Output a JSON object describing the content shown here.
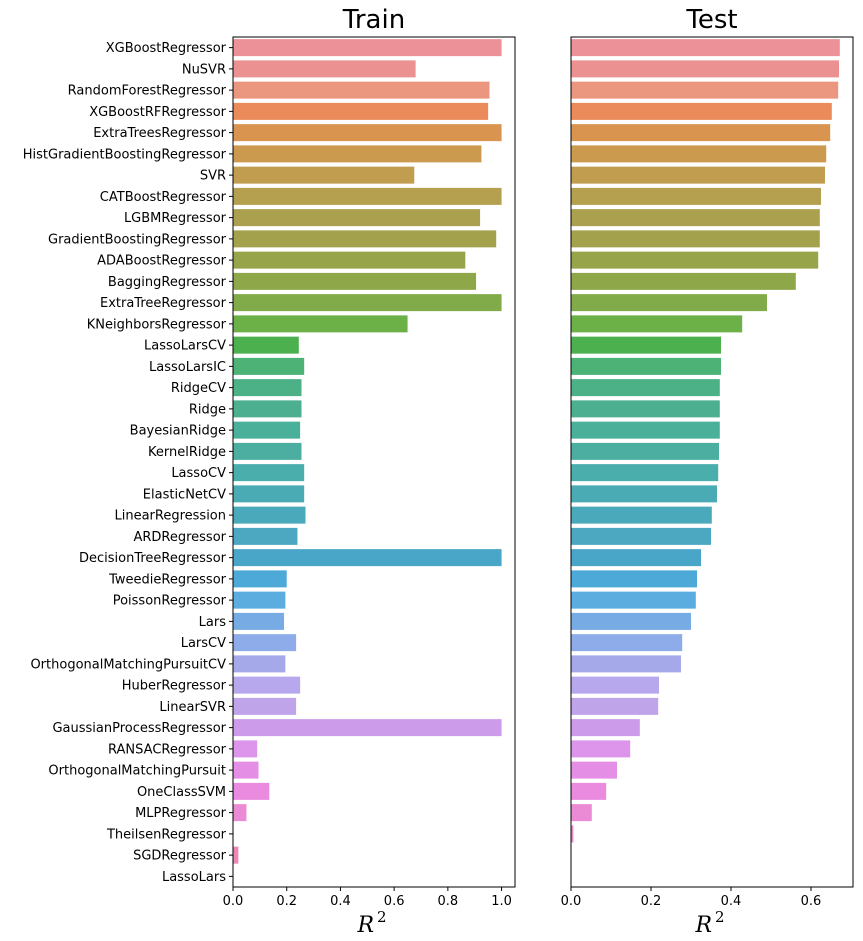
{
  "chart_data": [
    {
      "type": "bar",
      "orientation": "horizontal",
      "title": "Train",
      "xlabel": "R",
      "xlabel_sup": "2",
      "xlim": [
        0,
        1.05
      ],
      "xticks": [
        "0.0",
        "0.2",
        "0.4",
        "0.6",
        "0.8",
        "1.0"
      ],
      "categories": [
        "XGBoostRegressor",
        "NuSVR",
        "RandomForestRegressor",
        "XGBoostRFRegressor",
        "ExtraTreesRegressor",
        "HistGradientBoostingRegressor",
        "SVR",
        "CATBoostRegressor",
        "LGBMRegressor",
        "GradientBoostingRegressor",
        "ADABoostRegressor",
        "BaggingRegressor",
        "ExtraTreeRegressor",
        "KNeighborsRegressor",
        "LassoLarsCV",
        "LassoLarsIC",
        "RidgeCV",
        "Ridge",
        "BayesianRidge",
        "KernelRidge",
        "LassoCV",
        "ElasticNetCV",
        "LinearRegression",
        "ARDRegressor",
        "DecisionTreeRegressor",
        "TweedieRegressor",
        "PoissonRegressor",
        "Lars",
        "LarsCV",
        "OrthogonalMatchingPursuitCV",
        "HuberRegressor",
        "LinearSVR",
        "GaussianProcessRegressor",
        "RANSACRegressor",
        "OrthogonalMatchingPursuit",
        "OneClassSVM",
        "MLPRegressor",
        "TheilsenRegressor",
        "SGDRegressor",
        "LassoLars"
      ],
      "values": [
        1.0,
        0.68,
        0.955,
        0.95,
        1.0,
        0.925,
        0.675,
        1.0,
        0.92,
        0.98,
        0.865,
        0.905,
        1.0,
        0.65,
        0.245,
        0.265,
        0.255,
        0.255,
        0.25,
        0.255,
        0.265,
        0.265,
        0.27,
        0.24,
        1.0,
        0.2,
        0.195,
        0.19,
        0.235,
        0.195,
        0.25,
        0.235,
        1.0,
        0.09,
        0.095,
        0.135,
        0.05,
        0.0,
        0.02,
        0.0
      ]
    },
    {
      "type": "bar",
      "orientation": "horizontal",
      "title": "Test",
      "xlabel": "R",
      "xlabel_sup": "2",
      "xlim": [
        0,
        0.705
      ],
      "xticks": [
        "0.0",
        "0.2",
        "0.4",
        "0.6"
      ],
      "categories": [
        "XGBoostRegressor",
        "NuSVR",
        "RandomForestRegressor",
        "XGBoostRFRegressor",
        "ExtraTreesRegressor",
        "HistGradientBoostingRegressor",
        "SVR",
        "CATBoostRegressor",
        "LGBMRegressor",
        "GradientBoostingRegressor",
        "ADABoostRegressor",
        "BaggingRegressor",
        "ExtraTreeRegressor",
        "KNeighborsRegressor",
        "LassoLarsCV",
        "LassoLarsIC",
        "RidgeCV",
        "Ridge",
        "BayesianRidge",
        "KernelRidge",
        "LassoCV",
        "ElasticNetCV",
        "LinearRegression",
        "ARDRegressor",
        "DecisionTreeRegressor",
        "TweedieRegressor",
        "PoissonRegressor",
        "Lars",
        "LarsCV",
        "OrthogonalMatchingPursuitCV",
        "HuberRegressor",
        "LinearSVR",
        "GaussianProcessRegressor",
        "RANSACRegressor",
        "OrthogonalMatchingPursuit",
        "OneClassSVM",
        "MLPRegressor",
        "TheilsenRegressor",
        "SGDRegressor",
        "LassoLars"
      ],
      "values": [
        0.672,
        0.67,
        0.668,
        0.652,
        0.648,
        0.638,
        0.635,
        0.625,
        0.622,
        0.622,
        0.618,
        0.562,
        0.49,
        0.428,
        0.375,
        0.375,
        0.372,
        0.372,
        0.372,
        0.37,
        0.368,
        0.365,
        0.352,
        0.35,
        0.325,
        0.315,
        0.312,
        0.3,
        0.278,
        0.275,
        0.22,
        0.218,
        0.172,
        0.148,
        0.115,
        0.088,
        0.052,
        0.006,
        0.0,
        0.0
      ]
    }
  ],
  "colors": [
    "#ec9198",
    "#ec9191",
    "#eb967f",
    "#eb8a5a",
    "#d9944f",
    "#cb9a4f",
    "#c19d4f",
    "#b4a04e",
    "#aaa04e",
    "#a4a14c",
    "#98a44a",
    "#8ea849",
    "#80ab48",
    "#6cb048",
    "#4db04e",
    "#4cb276",
    "#4cb187",
    "#4cb090",
    "#4bb099",
    "#4baea0",
    "#4aaeac",
    "#4aabb4",
    "#4ba9bc",
    "#4ba8c0",
    "#4aa6c9",
    "#4da9d8",
    "#5aadde",
    "#77abe4",
    "#8eabea",
    "#a5a9ea",
    "#b7a7ec",
    "#c0a4ea",
    "#cc9be9",
    "#dc95ea",
    "#e58ee6",
    "#eb8bdf",
    "#ec8bd5",
    "#ec89c7",
    "#ec87b7",
    "#ec86a8"
  ]
}
